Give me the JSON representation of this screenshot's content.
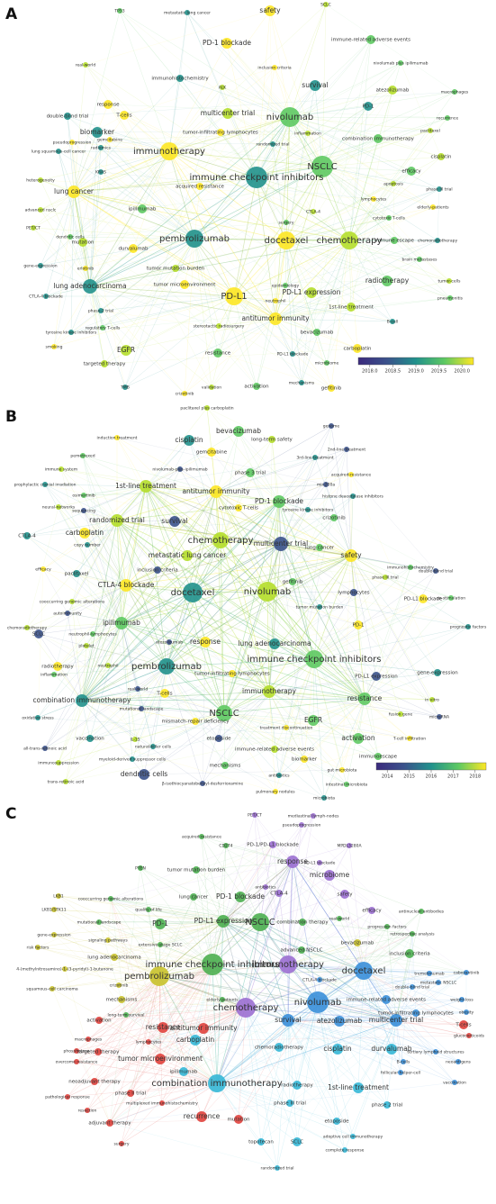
{
  "panels": [
    {
      "label": "A",
      "nodes": [
        "safety",
        "SCLC",
        "TP53",
        "metastatic lung cancer",
        "PD-1 blockade",
        "real-world",
        "immune-related adverse events",
        "immunohistochemistry",
        "inclusion criteria",
        "ALK",
        "nivolumab plus ipilimumab",
        "survival",
        "response",
        "atezolizumab",
        "macrophages",
        "double-blind trial",
        "T-cells",
        "multicenter trial",
        "nivolumab",
        "PD-1",
        "pseudoprogression",
        "inflammation",
        "recurrence",
        "biomarker",
        "tumor-infiltrating lymphocytes",
        "paclitaxel",
        "combination immunotherapy",
        "lung squamous-cell cancer",
        "immunotherapy",
        "cisplatin",
        "NSCLC",
        "immune checkpoint inhibitors",
        "lung cancer",
        "heterogeneity",
        "efficacy",
        "KRAS",
        "acquired resistance",
        "advanced nsclc",
        "ipilimumab",
        "phase III trial",
        "elderly-patients",
        "PET/CT",
        "dendritic cells",
        "pembrolizumab",
        "docetaxel",
        "chemotherapy",
        "immune escape",
        "chemoradiotherapy",
        "durvalumab",
        "mutation",
        "brain metastases",
        "gene-expression",
        "erlotinib",
        "tumor mutation burden",
        "radiotherapy",
        "lung adenocarcinoma",
        "tumor microenvironment",
        "tumor-cells",
        "epidemiology",
        "CTLA-4 blockade",
        "PD-L1",
        "PD-L1 expression",
        "pneumonitis",
        "phase-2 trial",
        "neutrophil",
        "1st-line treatment",
        "regulatory T-cells",
        "tyrosine kinase inhibitors",
        "antitumor immunity",
        "stereotactic radiosurgery",
        "bevacizumab",
        "B-cell",
        "smoking",
        "EGFR",
        "resistance",
        "PD-L1 blockade",
        "carboplatin",
        "targeted therapy",
        "microbiome",
        "TMB",
        "crizotinib",
        "validation",
        "activation",
        "mechanisms",
        "gefitinib",
        "CTLA-4",
        "surgery",
        "randomized trial",
        "lymphocytes",
        "apoptosis",
        "cytotoxic T-cells",
        "radiomics",
        "gemcitabine"
      ],
      "colorbar": [
        "2018.0",
        "2018.5",
        "2019.0",
        "2019.5",
        "2020.0"
      ]
    },
    {
      "label": "B",
      "nodes": [
        "paclitaxel plus carboplatin",
        "genome",
        "bevacizumab",
        "induction treatment",
        "cisplatin",
        "long-term safety",
        "2nd-line treatment",
        "pemetrexed",
        "gemcitabine",
        "3rd-line treatment",
        "immune system",
        "nivolumab-plus-ipilimumab",
        "phase 3 trial",
        "acquired-resistance",
        "prophylactic cranial irradiation",
        "1st-line treatment",
        "mir-200a",
        "osimertinib",
        "antitumor immunity",
        "histone deacetylase inhibitors",
        "neural-networks",
        "sequencing",
        "PD-1 blockade",
        "cytotoxic T-cells",
        "tyrosine kinase inhibitors",
        "randomized trial",
        "survival",
        "crizotinib",
        "carboplatin",
        "copy number",
        "chemotherapy",
        "multicenter trial",
        "lung cancer",
        "safety",
        "CTLA-4",
        "metastatic lung cancer",
        "inclusion criteria",
        "immunohistochemistry",
        "efficacy",
        "paclitaxel",
        "phase III trial",
        "double-blind trial",
        "gefitinib",
        "CTLA-4 blockade",
        "docetaxel",
        "nivolumab",
        "lymphocytes",
        "co-stimulation",
        "PD-L1 blockade",
        "tumor mutation burden",
        "cooccurring genomic alterations",
        "autoimmunity",
        "ipilimumab",
        "PD-1",
        "prognostic factors",
        "chemoradiotherapy",
        "SCLC",
        "neutrophil-lymphocytes",
        "response",
        "lung adenocarcinoma",
        "platelet",
        "atezolizumab",
        "immune checkpoint inhibitors",
        "radiotherapy",
        "pembrolizumab",
        "neutrophil",
        "PD-L1 expression",
        "inflammation",
        "tumor-infiltrating lymphocytes",
        "gene-expression",
        "immunotherapy",
        "real-world",
        "resistance",
        "T-cells",
        "combination immunotherapy",
        "in vitro",
        "mutational landscape",
        "NSCLC",
        "mismatch-repair deficiency",
        "oxidative stress",
        "fusion gene",
        "microRNA",
        "EGFR",
        "treatment discontinuation",
        "vaccination",
        "IL-15",
        "etoposide",
        "activation",
        "T-cell infiltration",
        "natural-killer cells",
        "immune-related adverse events",
        "all-trans-retinoic acid",
        "immunoescape",
        "biomarker",
        "myeloid-derived suppressor cells",
        "immunosuppression",
        "dendritic cells",
        "mechanisms",
        "gut microbiota",
        "antibiotics",
        "trans-retinoic acid",
        "β-isothiocyanatobenzyl-desferrioxamine",
        "intestinal microbiota",
        "pulmonary nodules",
        "microbiota"
      ],
      "colorbar": [
        "2014",
        "2015",
        "2016",
        "2017",
        "2018"
      ]
    },
    {
      "label": "C",
      "nodes": [
        "PET/CT",
        "mediastinal lymph-nodes",
        "pseudoprogression",
        "acquired resistance",
        "CD274",
        "PD-1/PD-L1 blockade",
        "MPDL3280A",
        "PTEN",
        "tumor mutation burden",
        "response",
        "PD-L1 blockade",
        "microbiome",
        "antibiotics",
        "CTLA-4",
        "lung cancer",
        "PD-1 blockade",
        "safety",
        "LKB1",
        "cooccurring genomic alterations",
        "quality of life",
        "LKB1/STK11",
        "efficacy",
        "antinuclear antibodies",
        "PD-L1 expression",
        "PD-1",
        "NSCLC",
        "combination therapy",
        "real-world",
        "mutational landscape",
        "progression factors",
        "gene-expression",
        "retrospective analysis",
        "risk factors",
        "signaling pathways",
        "extensive-stage SCLC",
        "advanced NSCLC",
        "bevacizumab",
        "inclusion criteria",
        "lung adenocarcinoma",
        "4-(methylnitrosamino)-1-(3-pyridyl)-1-butanone",
        "immune checkpoint inhibitors",
        "immunotherapy",
        "CTLA-4 blockade",
        "docetaxel",
        "cabozantinib",
        "tremelimumab",
        "pembrolizumab",
        "squamous-cell carcinoma",
        "crizotinib",
        "metastatic NSCLC",
        "double-blind trial",
        "mechanisms",
        "elderly patients",
        "nivolumab",
        "immune-related adverse events",
        "weight-loss",
        "chemotherapy",
        "long-term survival",
        "tumor-infiltrating lymphocytes",
        "obesity",
        "activation",
        "survival",
        "atezolizumab",
        "multicenter trial",
        "T-cells",
        "resistance",
        "antitumor immunity",
        "carboplatin",
        "macrophages",
        "glucocorticoids",
        "lymphocytes",
        "phosphatase",
        "targeted therapy",
        "tumor microenvironment",
        "chemoradiotherapy",
        "cisplatin",
        "durvalumab",
        "tertiary lymphoid structures",
        "overcome resistance",
        "ipilimumab",
        "B-cells",
        "neoantigens",
        "follicular helper-cell",
        "combination immunotherapy",
        "neoadjuvant therapy",
        "radiotherapy",
        "1st-line treatment",
        "vaccination",
        "phase II trial",
        "multiplexed immunohistochemistry",
        "pathological response",
        "phase III trial",
        "phase 2 trial",
        "resection",
        "recurrence",
        "mutation",
        "adjuvant therapy",
        "etoposide",
        "SCLC",
        "topotecan",
        "adoptive cell immunotherapy",
        "complete response",
        "surgery",
        "randomized trial"
      ]
    }
  ]
}
